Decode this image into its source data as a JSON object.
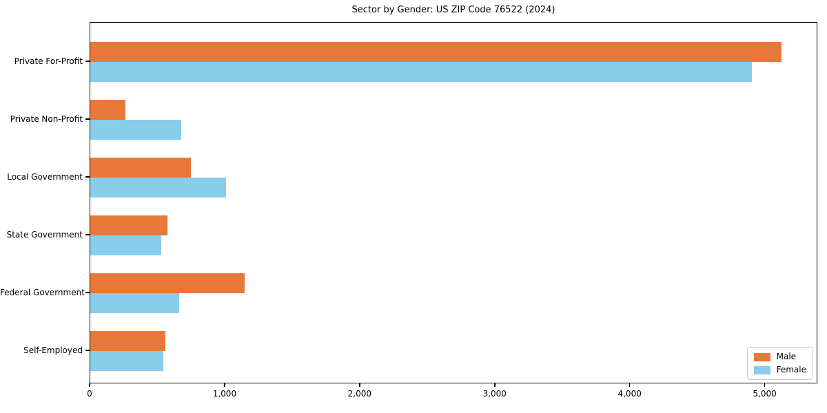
{
  "chart_data": {
    "type": "bar",
    "orientation": "horizontal",
    "title": "Sector by Gender: US ZIP Code 76522 (2024)",
    "categories": [
      "Private For-Profit",
      "Private Non-Profit",
      "Local Government",
      "State Government",
      "Federal Government",
      "Self-Employed"
    ],
    "series": [
      {
        "name": "Male",
        "color": "#E8783A",
        "values": [
          5130,
          260,
          745,
          575,
          1145,
          555
        ]
      },
      {
        "name": "Female",
        "color": "#87CEEB",
        "values": [
          4910,
          675,
          1005,
          525,
          660,
          540
        ]
      }
    ],
    "xlim": [
      0,
      5390
    ],
    "xticks": {
      "values": [
        0,
        1000,
        2000,
        3000,
        4000,
        5000
      ],
      "labels": [
        "0",
        "1,000",
        "2,000",
        "3,000",
        "4,000",
        "5,000"
      ]
    },
    "xlabel": "",
    "ylabel": "",
    "legend_position": "lower right",
    "grid": false
  },
  "colors": {
    "spine": "#000000",
    "text": "#000000",
    "legend_border": "#cccccc",
    "background": "#ffffff"
  }
}
